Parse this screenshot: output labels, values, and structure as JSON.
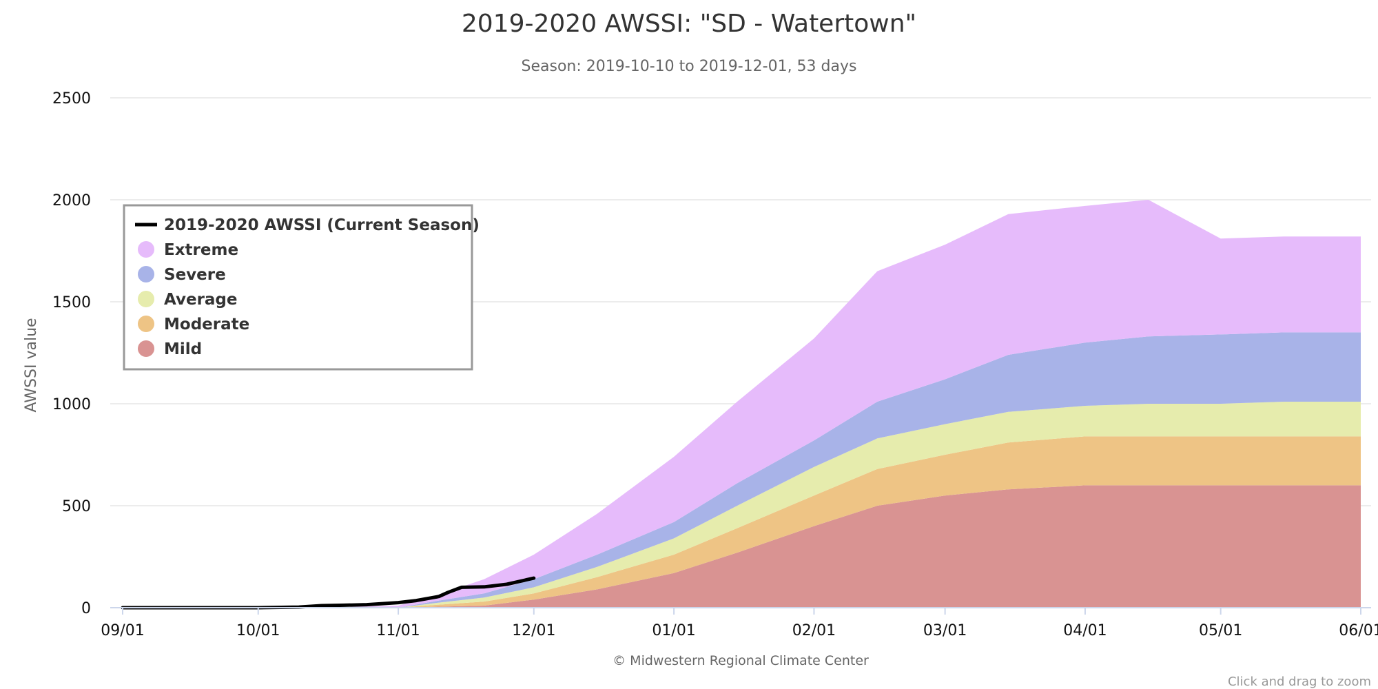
{
  "chart_data": {
    "type": "area",
    "title": "2019-2020 AWSSI: \"SD - Watertown\"",
    "subtitle": "Season: 2019-10-10 to 2019-12-01, 53 days",
    "ylabel": "AWSSI value",
    "credit": "© Midwestern Regional Climate Center",
    "zoom_hint": "Click and drag to zoom",
    "ylim": [
      0,
      2500
    ],
    "y_ticks": [
      0,
      500,
      1000,
      1500,
      2000,
      2500
    ],
    "xlim": [
      "09/01",
      "06/01"
    ],
    "x_ticks": [
      "09/01",
      "10/01",
      "11/01",
      "12/01",
      "01/01",
      "02/01",
      "03/01",
      "04/01",
      "05/01",
      "06/01"
    ],
    "grid": true,
    "stacked": true,
    "legend_position": "top-left",
    "x_dates": [
      "09/01",
      "10/01",
      "10/15",
      "11/01",
      "11/10",
      "11/20",
      "12/01",
      "12/15",
      "01/01",
      "01/15",
      "02/01",
      "02/15",
      "03/01",
      "03/15",
      "04/01",
      "04/15",
      "05/01",
      "05/15",
      "06/01"
    ],
    "series": [
      {
        "name": "Mild",
        "color": "#d99392",
        "values": [
          0,
          0,
          0,
          0,
          5,
          10,
          40,
          90,
          170,
          270,
          400,
          500,
          550,
          580,
          600,
          600,
          600,
          600,
          600
        ]
      },
      {
        "name": "Moderate",
        "color": "#eec485",
        "values": [
          0,
          0,
          0,
          0,
          10,
          20,
          30,
          60,
          90,
          120,
          150,
          180,
          200,
          230,
          240,
          240,
          240,
          240,
          240
        ]
      },
      {
        "name": "Average",
        "color": "#e6ecad",
        "values": [
          0,
          0,
          0,
          0,
          10,
          20,
          30,
          50,
          80,
          110,
          140,
          150,
          150,
          150,
          150,
          160,
          160,
          170,
          170
        ]
      },
      {
        "name": "Severe",
        "color": "#a8b3e8",
        "values": [
          0,
          0,
          0,
          0,
          10,
          20,
          40,
          60,
          80,
          110,
          130,
          180,
          220,
          280,
          310,
          330,
          340,
          340,
          340
        ]
      },
      {
        "name": "Extreme",
        "color": "#e6bbfb",
        "values": [
          0,
          0,
          0,
          10,
          30,
          70,
          120,
          200,
          320,
          400,
          500,
          640,
          660,
          690,
          670,
          670,
          470,
          470,
          470
        ]
      }
    ],
    "current_season": {
      "name": "2019-2020 AWSSI (Current Season)",
      "color": "#000000",
      "x": [
        "09/01",
        "10/01",
        "10/10",
        "10/15",
        "10/20",
        "10/25",
        "11/01",
        "11/05",
        "11/10",
        "11/12",
        "11/15",
        "11/20",
        "11/25",
        "12/01"
      ],
      "values": [
        0,
        0,
        3,
        10,
        12,
        15,
        25,
        35,
        55,
        75,
        100,
        102,
        115,
        145
      ]
    }
  }
}
